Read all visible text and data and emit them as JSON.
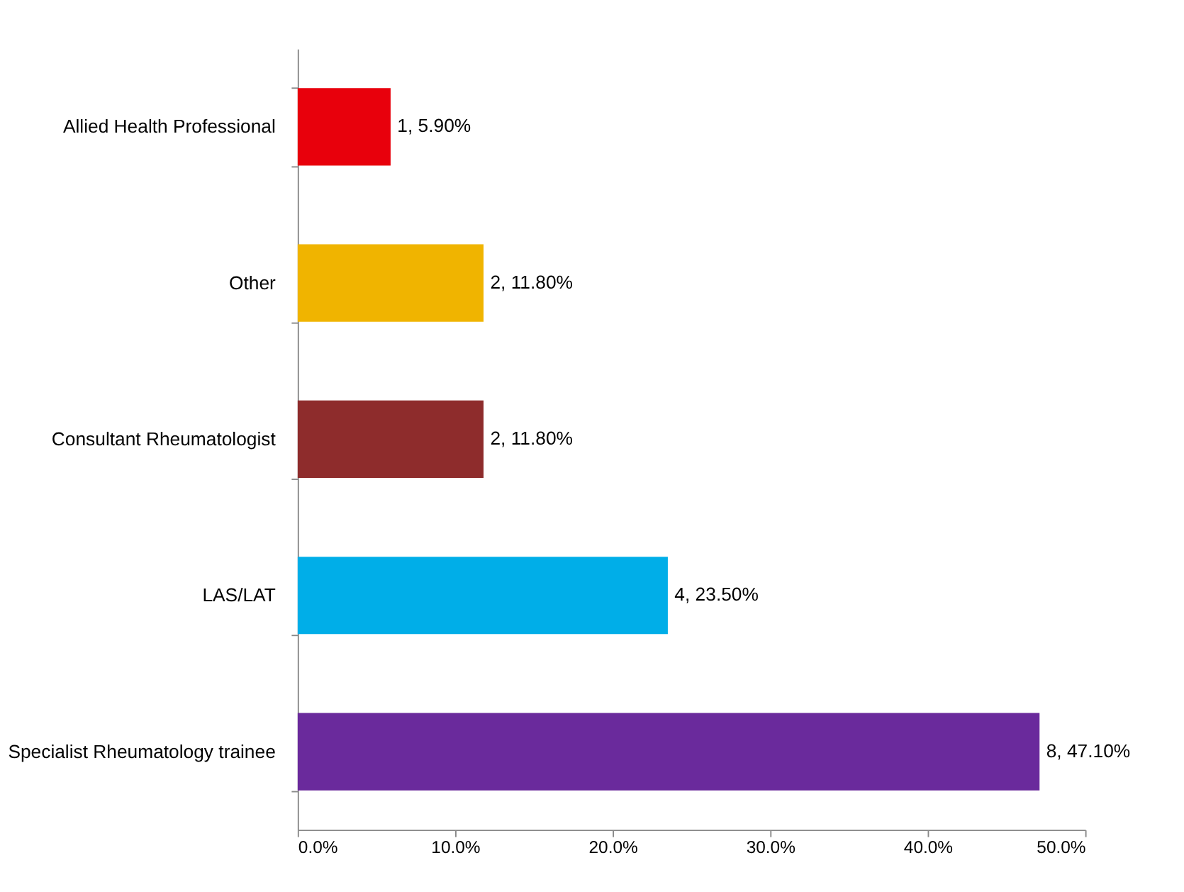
{
  "chart_data": {
    "type": "bar",
    "orientation": "horizontal",
    "categories": [
      "Allied Health Professional",
      "Other",
      "Consultant Rheumatologist",
      "LAS/LAT",
      "Specialist Rheumatology trainee"
    ],
    "values": [
      5.9,
      11.8,
      11.8,
      23.5,
      47.1
    ],
    "colors": [
      "#e8000c",
      "#f0b400",
      "#8e2c2c",
      "#00aee8",
      "#6a2a9c"
    ],
    "value_labels": [
      "1, 5.90%",
      "2, 11.80%",
      "2, 11.80%",
      "4, 23.50%",
      "8, 47.10%"
    ],
    "xlim": [
      0,
      50
    ],
    "xticks": [
      {
        "value": 0,
        "label": "0.0%"
      },
      {
        "value": 10,
        "label": "10.0%"
      },
      {
        "value": 20,
        "label": "20.0%"
      },
      {
        "value": 30,
        "label": "30.0%"
      },
      {
        "value": 40,
        "label": "40.0%"
      },
      {
        "value": 50,
        "label": "50.0%"
      }
    ],
    "grid": false
  }
}
